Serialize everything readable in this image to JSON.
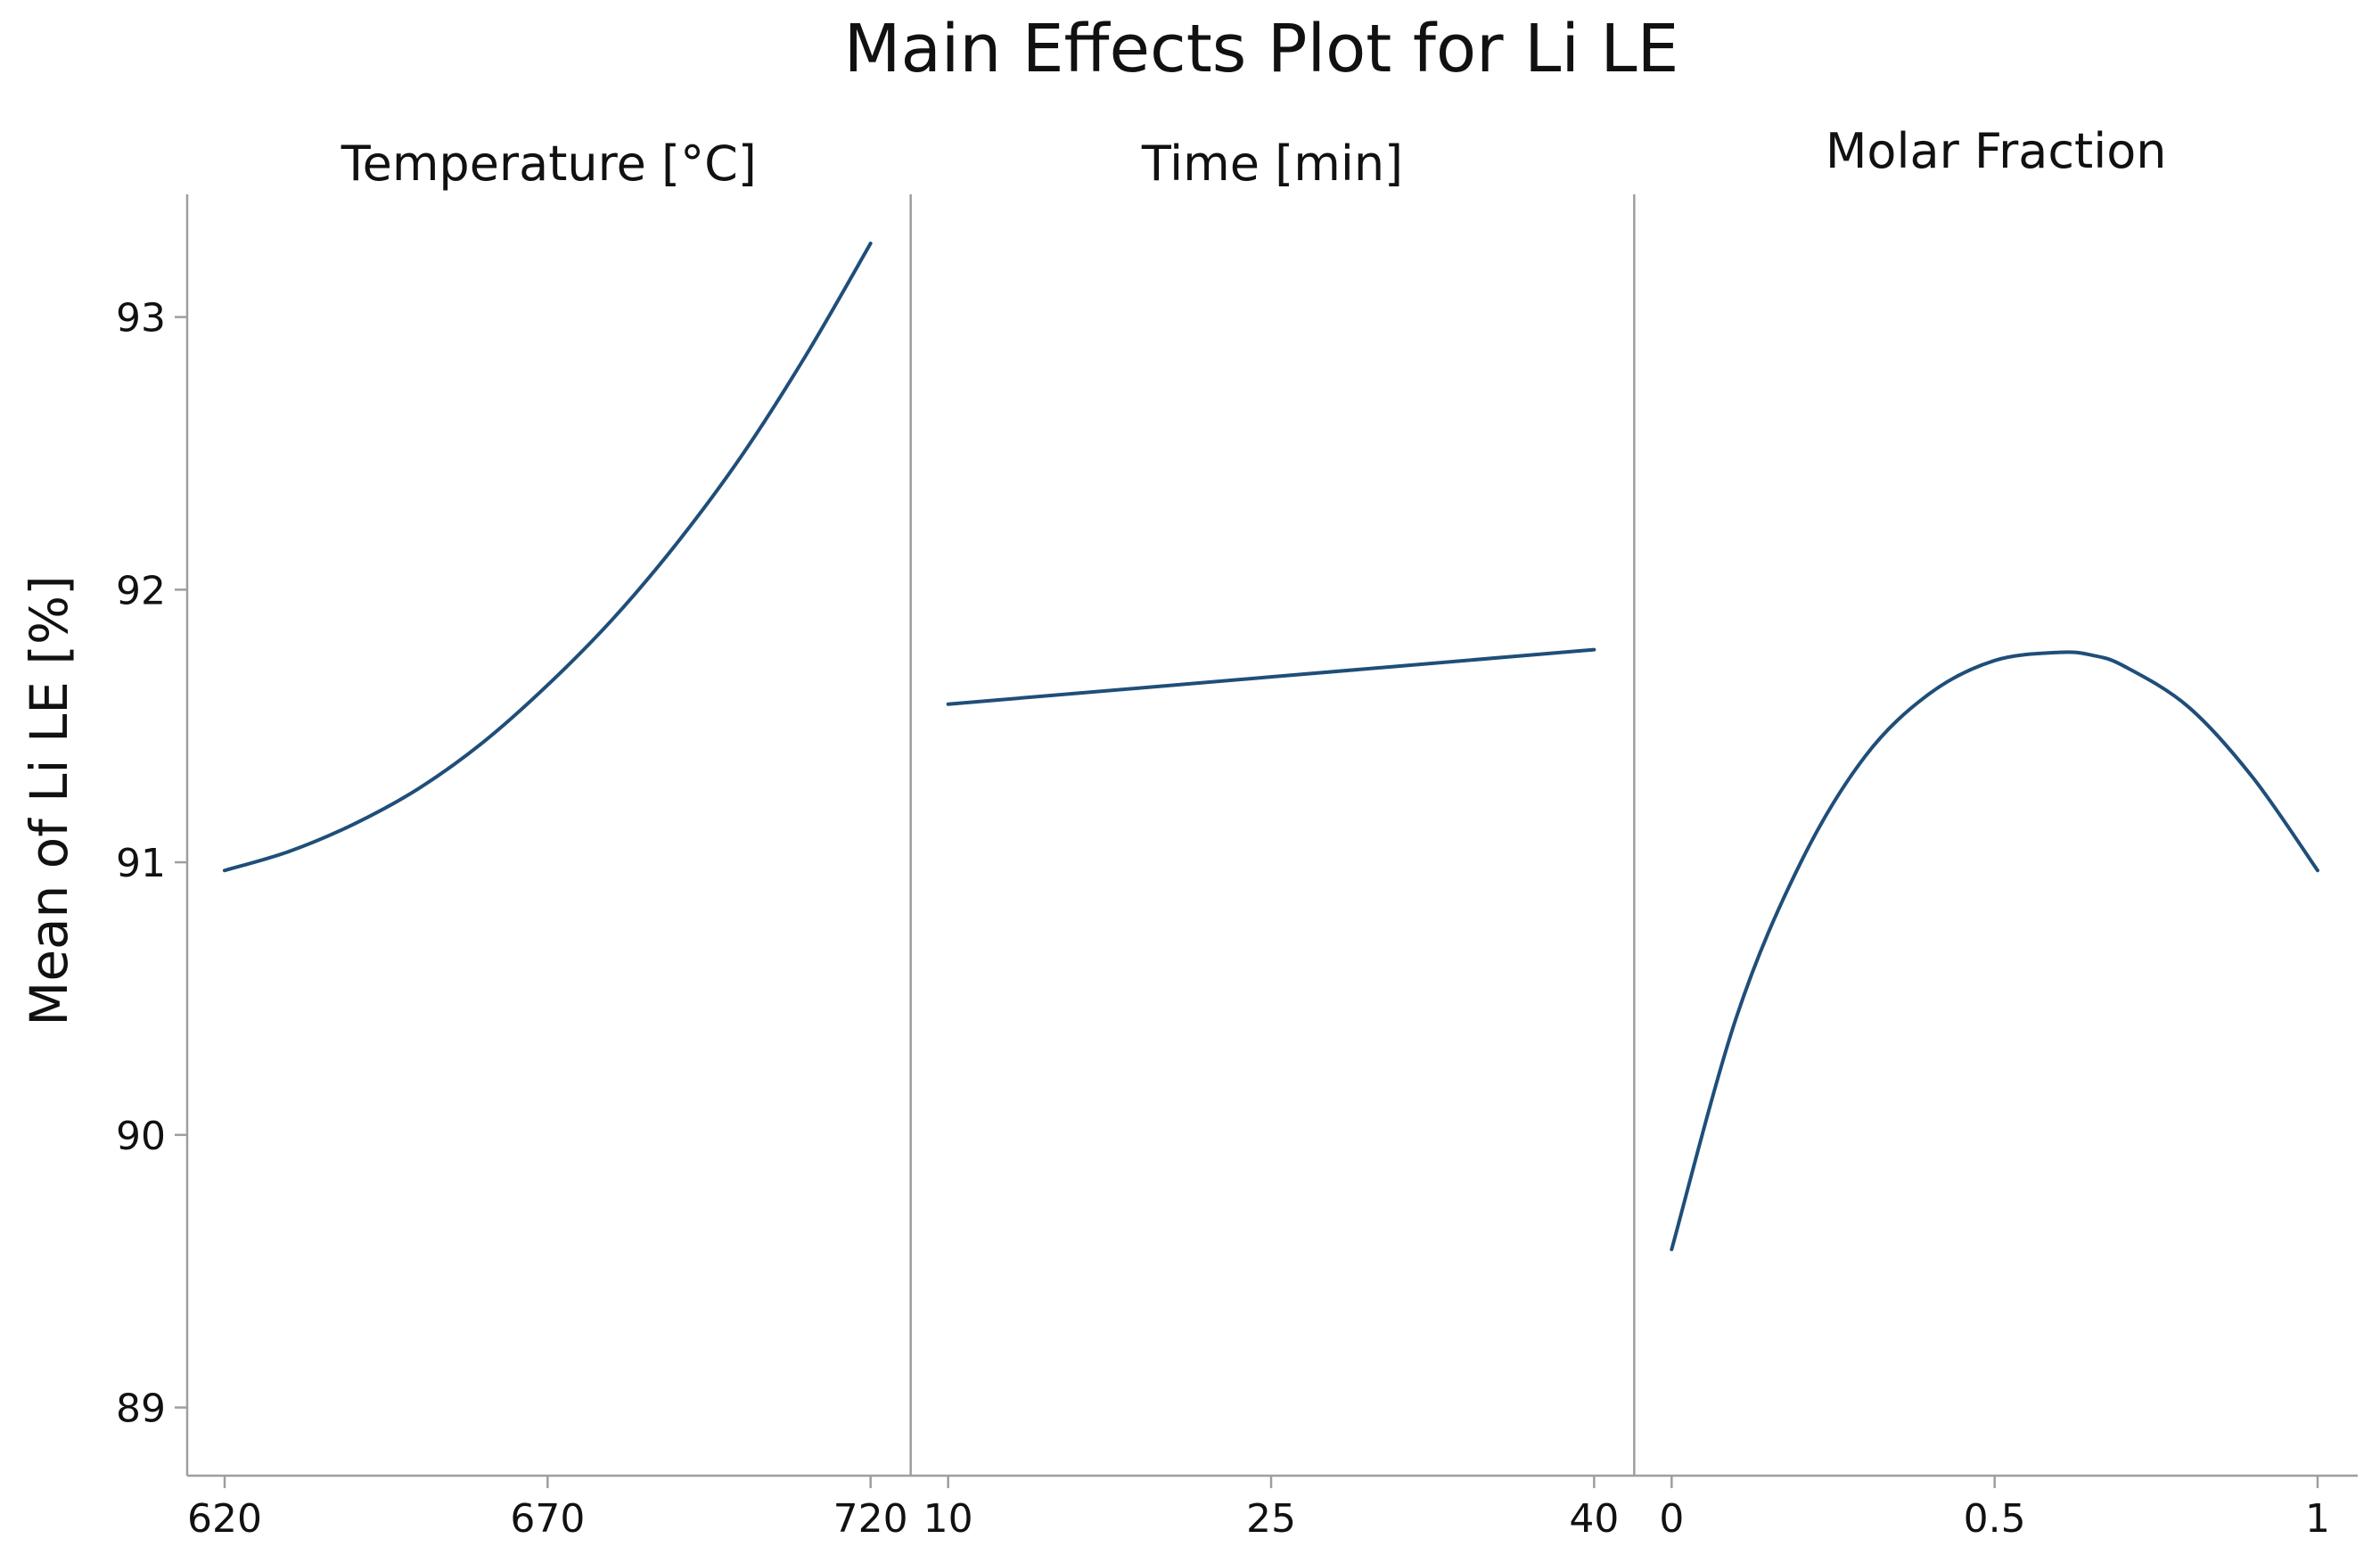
{
  "chart_data": {
    "type": "line",
    "title": "Main Effects Plot for Li LE",
    "ylabel": "Mean of Li LE [%]",
    "ylim": [
      88.75,
      93.45
    ],
    "yticks": [
      89,
      90,
      91,
      92,
      93
    ],
    "line_color": "#1f4e79",
    "grid": false,
    "panels": [
      {
        "title": "Temperature [°C]",
        "xlim": [
          620,
          720
        ],
        "xticks": [
          620,
          670,
          720
        ],
        "xtick_labels": [
          "620",
          "670",
          "720"
        ],
        "series": [
          {
            "name": "Temperature [°C]",
            "x": [
              620,
              630,
              640,
              650,
              660,
              670,
              680,
              690,
              700,
              710,
              720
            ],
            "y": [
              90.97,
              91.04,
              91.14,
              91.27,
              91.44,
              91.65,
              91.89,
              92.17,
              92.49,
              92.86,
              93.27
            ]
          }
        ]
      },
      {
        "title": "Time [min]",
        "xlim": [
          10,
          40
        ],
        "xticks": [
          10,
          25,
          40
        ],
        "xtick_labels": [
          "10",
          "25",
          "40"
        ],
        "series": [
          {
            "name": "Time [min]",
            "x": [
              10,
              25,
              40
            ],
            "y": [
              91.58,
              91.68,
              91.78
            ]
          }
        ]
      },
      {
        "title": "Molar Fraction",
        "xlim": [
          0,
          1
        ],
        "xticks": [
          0,
          0.5,
          1
        ],
        "xtick_labels": [
          "0",
          "0.5",
          "1"
        ],
        "series": [
          {
            "name": "Molar Fraction",
            "x": [
              0,
              0.1,
              0.2,
              0.3,
              0.4,
              0.5,
              0.6,
              0.65,
              0.7,
              0.8,
              0.9,
              1.0
            ],
            "y": [
              89.58,
              90.43,
              91.0,
              91.39,
              91.62,
              91.74,
              91.77,
              91.76,
              91.72,
              91.57,
              91.31,
              90.97
            ]
          }
        ]
      }
    ]
  }
}
